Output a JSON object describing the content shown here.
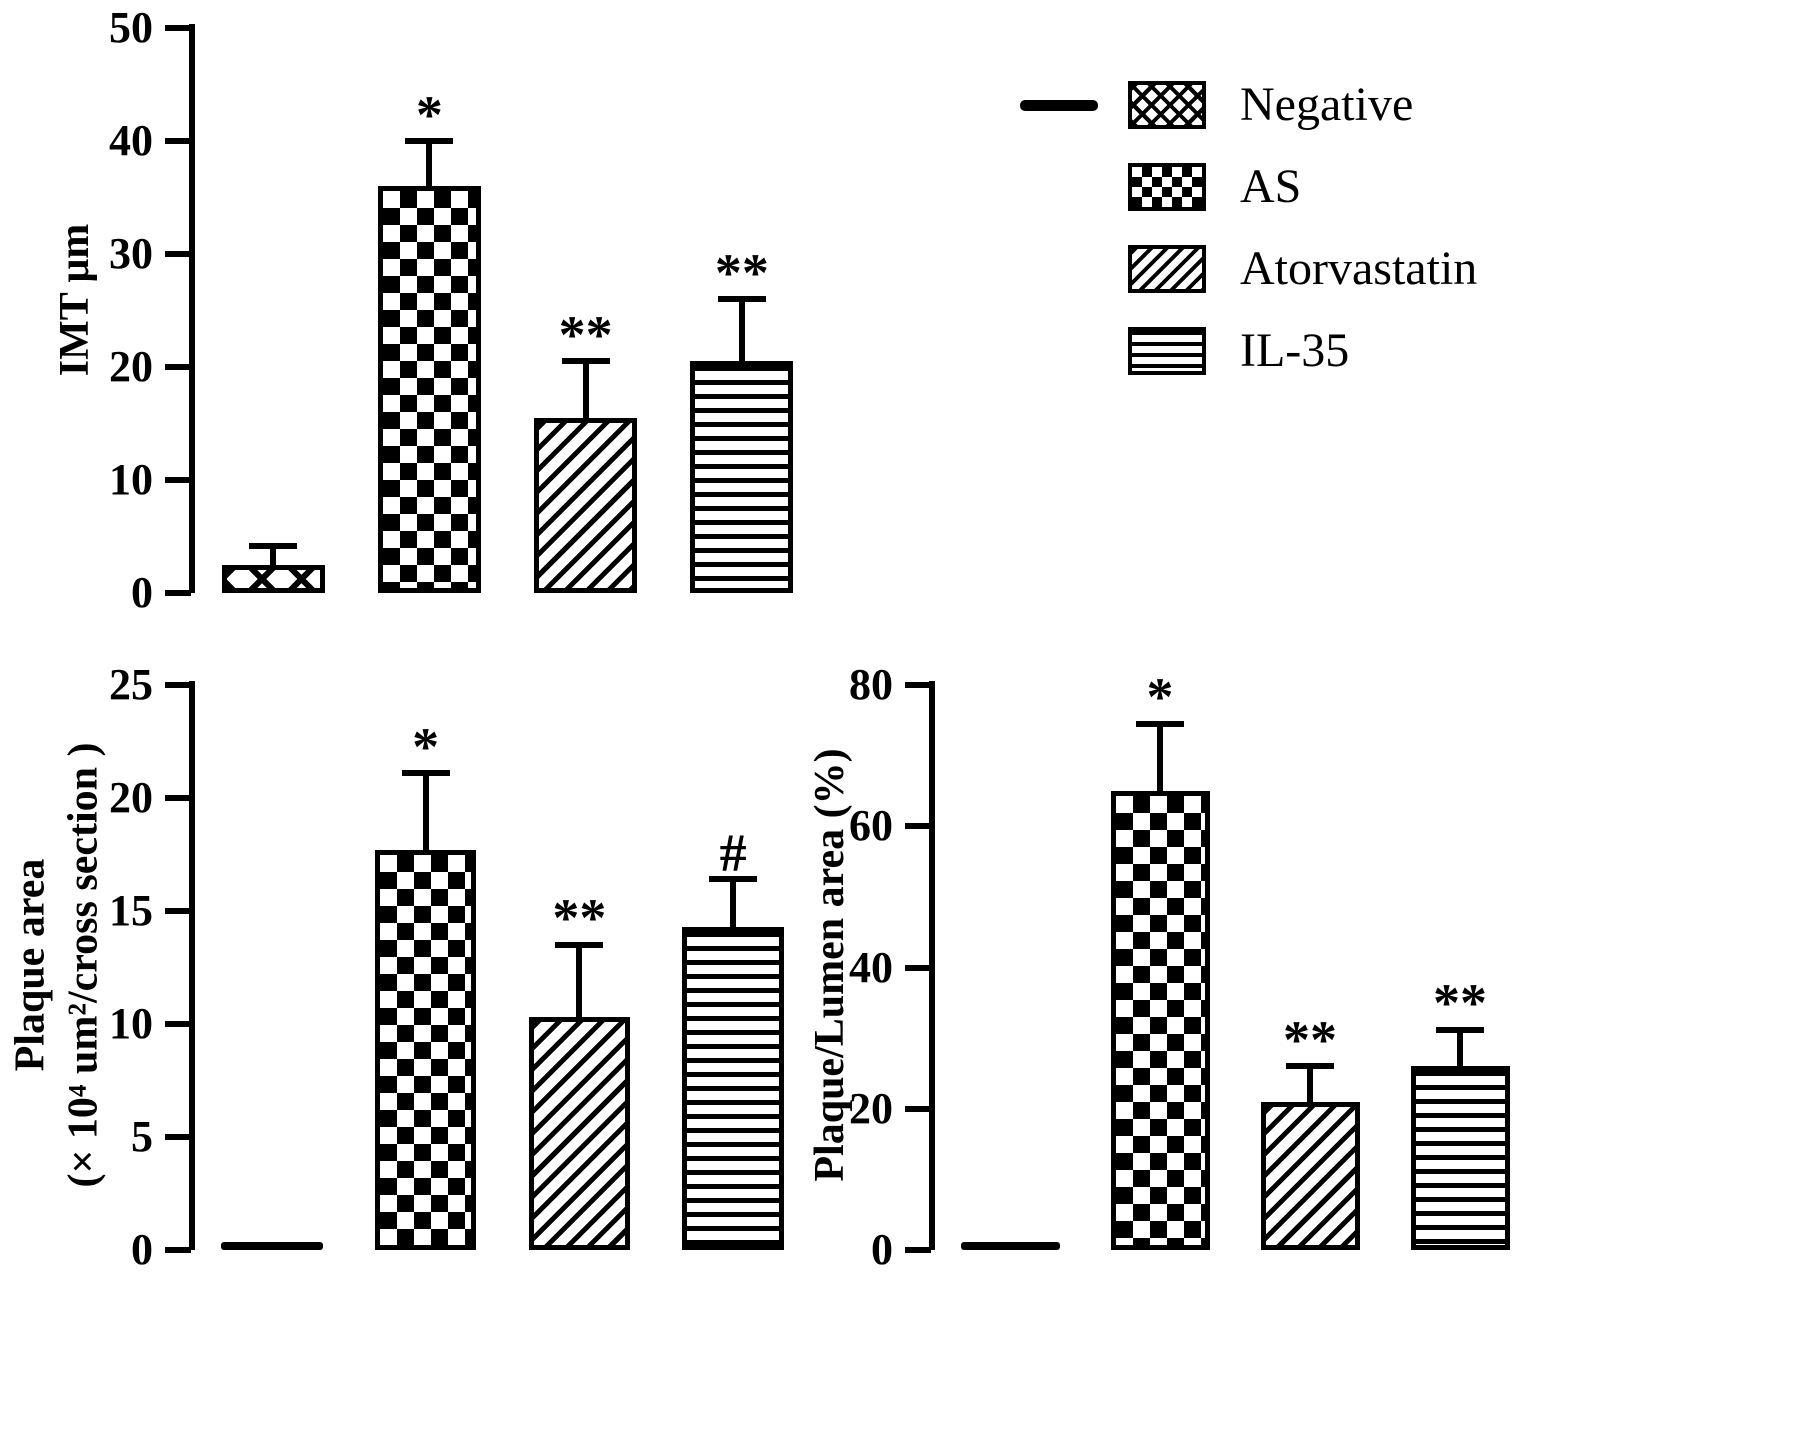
{
  "figure": {
    "background": "#ffffff",
    "ink": "#000000"
  },
  "legend": {
    "items": [
      {
        "label": "Negative",
        "pattern": "crosshatch",
        "marker_line": true
      },
      {
        "label": "AS",
        "pattern": "checker",
        "marker_line": false
      },
      {
        "label": "Atorvastatin",
        "pattern": "diagonal",
        "marker_line": false
      },
      {
        "label": "IL-35",
        "pattern": "horizontal",
        "marker_line": false
      }
    ]
  },
  "chart_data": [
    {
      "id": "imt",
      "type": "bar",
      "title": "",
      "ylabel": "IMT μm",
      "ylim": [
        0,
        50
      ],
      "yticks": [
        0,
        10,
        20,
        30,
        40,
        50
      ],
      "categories": [
        "Negative",
        "AS",
        "Atorvastatin",
        "IL-35"
      ],
      "values": [
        2.5,
        36,
        15.5,
        20.5
      ],
      "errors": [
        1.7,
        4,
        5,
        5.5
      ],
      "annotations": [
        "",
        "*",
        "**",
        "**"
      ],
      "patterns": [
        "crosshatch",
        "checker",
        "diagonal",
        "horizontal"
      ],
      "grid": false,
      "legend_position": "upper-right-outside"
    },
    {
      "id": "plaque-area",
      "type": "bar",
      "title": "",
      "ylabel": "Plaque area",
      "ylabel2": "(× 10⁴ um²/cross section )",
      "ylim": [
        0,
        25
      ],
      "yticks": [
        0,
        5,
        10,
        15,
        20,
        25
      ],
      "categories": [
        "Negative",
        "AS",
        "Atorvastatin",
        "IL-35"
      ],
      "values": [
        0,
        17.7,
        10.3,
        14.3
      ],
      "errors": [
        0,
        3.4,
        3.2,
        2.1
      ],
      "annotations": [
        "",
        "*",
        "**",
        "#"
      ],
      "patterns": [
        "solid",
        "checker",
        "diagonal",
        "horizontal"
      ],
      "grid": false
    },
    {
      "id": "plaque-lumen",
      "type": "bar",
      "title": "",
      "ylabel": "Plaque/Lumen area (%)",
      "ylim": [
        0,
        80
      ],
      "yticks": [
        0,
        20,
        40,
        60,
        80
      ],
      "categories": [
        "Negative",
        "AS",
        "Atorvastatin",
        "IL-35"
      ],
      "values": [
        0,
        65,
        21,
        26
      ],
      "errors": [
        0,
        9.5,
        5,
        5.2
      ],
      "annotations": [
        "",
        "*",
        "**",
        "**"
      ],
      "patterns": [
        "solid",
        "checker",
        "diagonal",
        "horizontal"
      ],
      "grid": false
    }
  ]
}
